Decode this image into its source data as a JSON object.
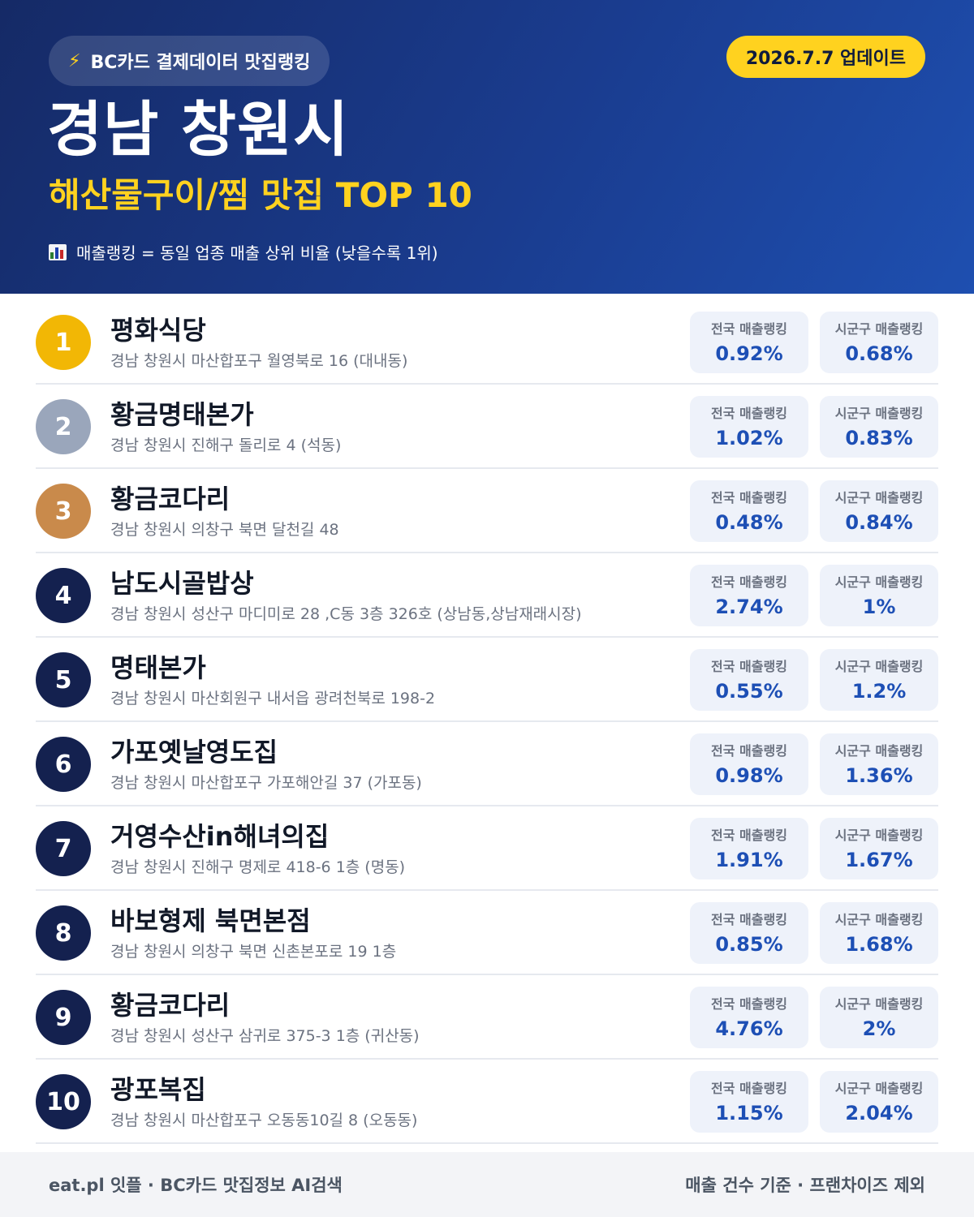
{
  "header": {
    "source_label": "BC카드 결제데이터 맛집랭킹",
    "update_date": "2026.7.7 업데이트",
    "region": "경남 창원시",
    "category": "해산물구이/찜 맛집 TOP 10",
    "legend": "매출랭킹 = 동일 업종 매출 상위 비율 (낮을수록 1위)"
  },
  "colors": {
    "header_bg": "#1a3c8f",
    "accent_yellow": "#ffd21f",
    "rank_gold": "#f2b705",
    "rank_silver": "#9aa6bb",
    "rank_bronze": "#c98a4b",
    "rank_default": "#14214f",
    "value_blue": "#1d4fb5"
  },
  "labels": {
    "national": "전국 매출랭킹",
    "local": "시군구 매출랭킹"
  },
  "restaurants": [
    {
      "rank": "1",
      "name": "평화식당",
      "address": "경남 창원시 마산합포구 월영북로 16 (대내동)",
      "national": "0.92%",
      "local": "0.68%"
    },
    {
      "rank": "2",
      "name": "황금명태본가",
      "address": "경남 창원시 진해구 돌리로 4 (석동)",
      "national": "1.02%",
      "local": "0.83%"
    },
    {
      "rank": "3",
      "name": "황금코다리",
      "address": "경남 창원시 의창구 북면 달천길 48",
      "national": "0.48%",
      "local": "0.84%"
    },
    {
      "rank": "4",
      "name": "남도시골밥상",
      "address": "경남 창원시 성산구 마디미로 28 ,C동 3층 326호 (상남동,상남재래시장)",
      "national": "2.74%",
      "local": "1%"
    },
    {
      "rank": "5",
      "name": "명태본가",
      "address": "경남 창원시 마산회원구 내서읍 광려천북로 198-2",
      "national": "0.55%",
      "local": "1.2%"
    },
    {
      "rank": "6",
      "name": "가포옛날영도집",
      "address": "경남 창원시 마산합포구 가포해안길 37 (가포동)",
      "national": "0.98%",
      "local": "1.36%"
    },
    {
      "rank": "7",
      "name": "거영수산in해녀의집",
      "address": "경남 창원시 진해구 명제로 418-6 1층 (명동)",
      "national": "1.91%",
      "local": "1.67%"
    },
    {
      "rank": "8",
      "name": "바보형제 북면본점",
      "address": "경남 창원시 의창구 북면 신촌본포로 19 1층",
      "national": "0.85%",
      "local": "1.68%"
    },
    {
      "rank": "9",
      "name": "황금코다리",
      "address": "경남 창원시 성산구 삼귀로 375-3 1층 (귀산동)",
      "national": "4.76%",
      "local": "2%"
    },
    {
      "rank": "10",
      "name": "광포복집",
      "address": "경남 창원시 마산합포구 오동동10길 8 (오동동)",
      "national": "1.15%",
      "local": "2.04%"
    }
  ],
  "footer": {
    "left": "eat.pl 잇플 · BC카드 맛집정보 AI검색",
    "right": "매출 건수 기준 · 프랜차이즈 제외"
  }
}
